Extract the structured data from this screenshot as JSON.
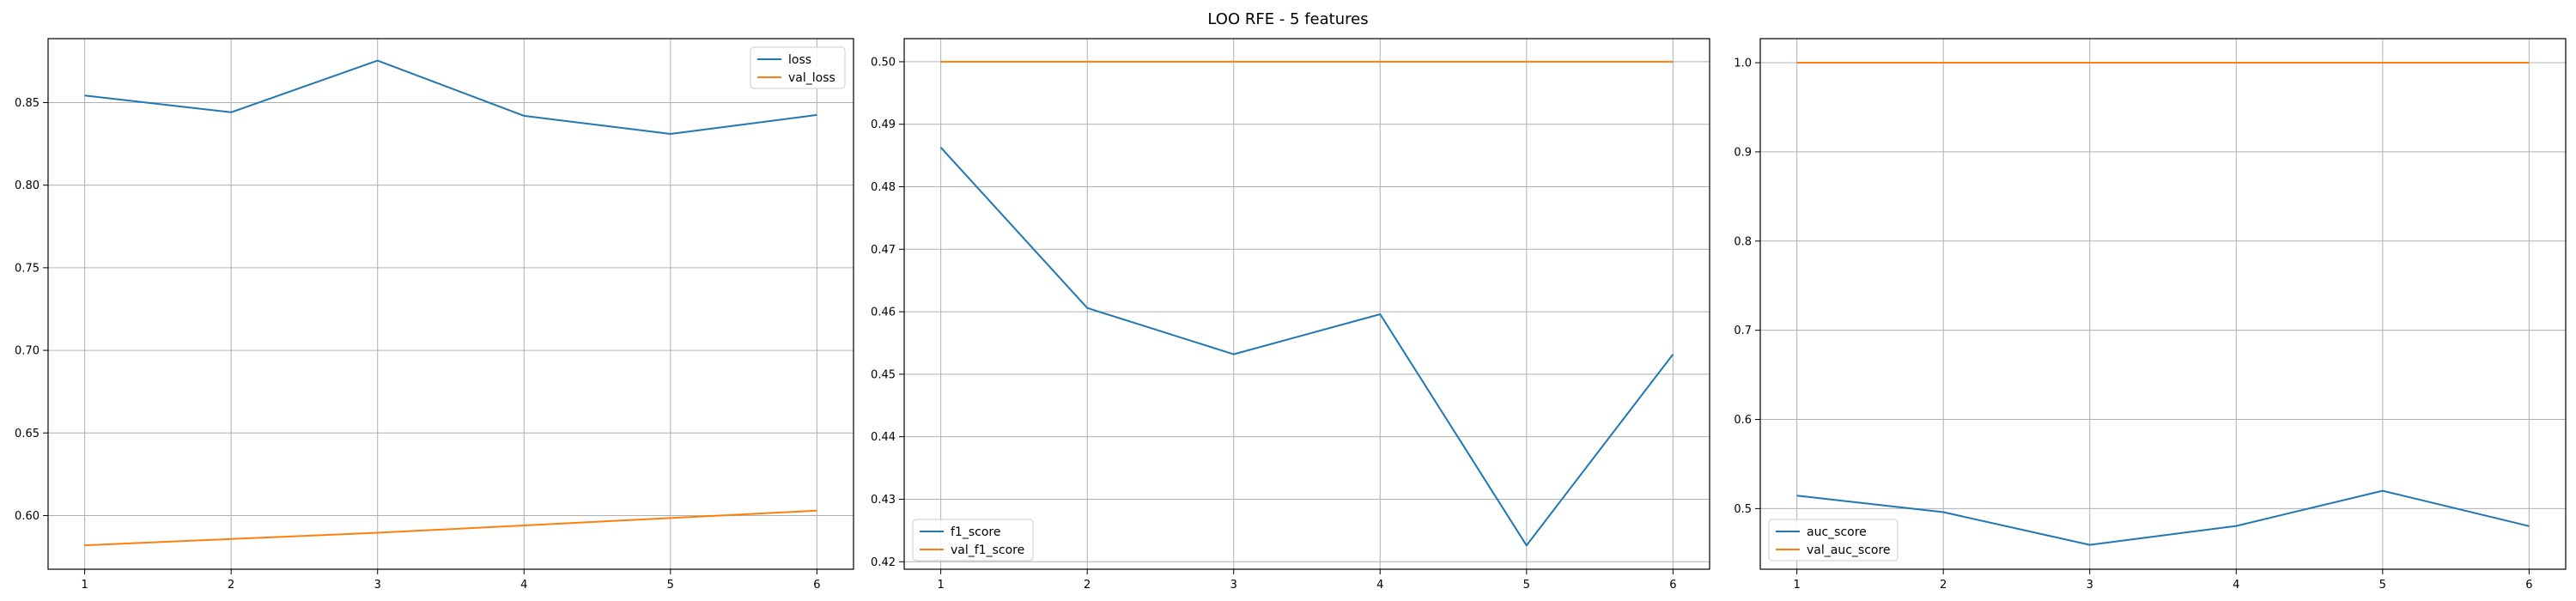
{
  "figure": {
    "suptitle": "LOO RFE - 5 features"
  },
  "colors": {
    "train": "#1f77b4",
    "val": "#ff7f0e",
    "grid": "#b0b0b0",
    "axes": "#000000",
    "legend_border": "#cccccc"
  },
  "chart_data": [
    {
      "type": "line",
      "x": [
        1,
        2,
        3,
        4,
        5,
        6
      ],
      "xlim": [
        0.75,
        6.25
      ],
      "ylim": [
        0.5675,
        0.8887
      ],
      "xticks": [
        1,
        2,
        3,
        4,
        5,
        6
      ],
      "yticks": [
        0.6,
        0.65,
        0.7,
        0.75,
        0.8,
        0.85
      ],
      "ytick_labels": [
        "0.60",
        "0.65",
        "0.70",
        "0.75",
        "0.80",
        "0.85"
      ],
      "grid": true,
      "legend_position": "upper right",
      "series": [
        {
          "name": "loss",
          "color_key": "train",
          "values": [
            0.8543,
            0.8441,
            0.8754,
            0.842,
            0.831,
            0.8425
          ]
        },
        {
          "name": "val_loss",
          "color_key": "val",
          "values": [
            0.582,
            0.5858,
            0.5896,
            0.594,
            0.5985,
            0.603
          ]
        }
      ]
    },
    {
      "type": "line",
      "x": [
        1,
        2,
        3,
        4,
        5,
        6
      ],
      "xlim": [
        0.75,
        6.25
      ],
      "ylim": [
        0.4188,
        0.5037
      ],
      "xticks": [
        1,
        2,
        3,
        4,
        5,
        6
      ],
      "yticks": [
        0.42,
        0.43,
        0.44,
        0.45,
        0.46,
        0.47,
        0.48,
        0.49,
        0.5
      ],
      "ytick_labels": [
        "0.42",
        "0.43",
        "0.44",
        "0.45",
        "0.46",
        "0.47",
        "0.48",
        "0.49",
        "0.50"
      ],
      "grid": true,
      "legend_position": "lower left",
      "series": [
        {
          "name": "f1_score",
          "color_key": "train",
          "values": [
            0.4863,
            0.4606,
            0.4532,
            0.4596,
            0.4226,
            0.4532
          ]
        },
        {
          "name": "val_f1_score",
          "color_key": "val",
          "values": [
            0.5,
            0.5,
            0.5,
            0.5,
            0.5,
            0.5
          ]
        }
      ]
    },
    {
      "type": "line",
      "x": [
        1,
        2,
        3,
        4,
        5,
        6
      ],
      "xlim": [
        0.75,
        6.25
      ],
      "ylim": [
        0.432,
        1.027
      ],
      "xticks": [
        1,
        2,
        3,
        4,
        5,
        6
      ],
      "yticks": [
        0.5,
        0.6,
        0.7,
        0.8,
        0.9,
        1.0
      ],
      "ytick_labels": [
        "0.5",
        "0.6",
        "0.7",
        "0.8",
        "0.9",
        "1.0"
      ],
      "grid": true,
      "legend_position": "lower left",
      "series": [
        {
          "name": "auc_score",
          "color_key": "train",
          "values": [
            0.5145,
            0.496,
            0.4593,
            0.4805,
            0.52,
            0.4803
          ]
        },
        {
          "name": "val_auc_score",
          "color_key": "val",
          "values": [
            1.0,
            1.0,
            1.0,
            1.0,
            1.0,
            1.0
          ]
        }
      ]
    }
  ]
}
